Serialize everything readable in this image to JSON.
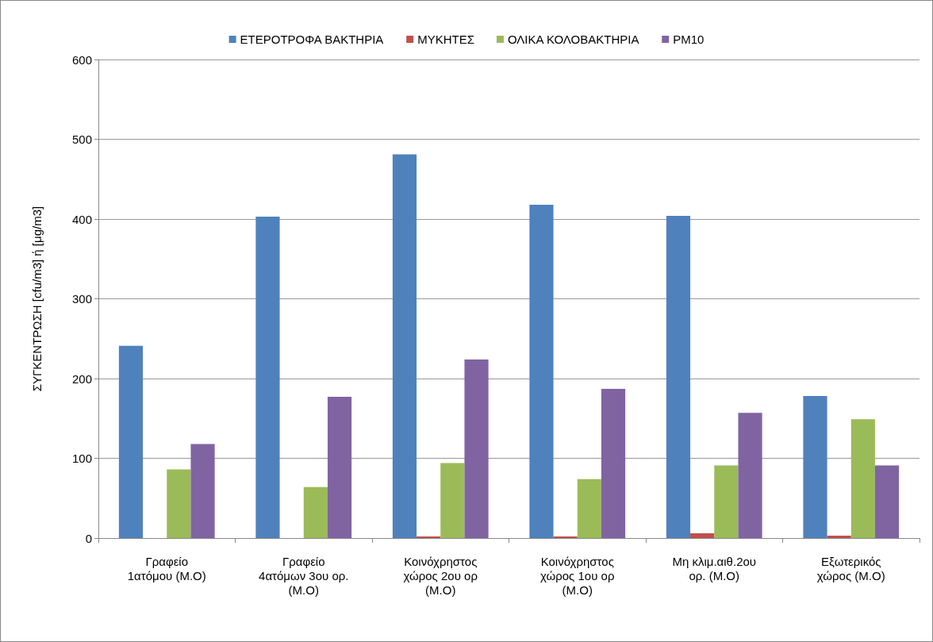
{
  "chart_data": {
    "type": "bar",
    "ylabel": "ΣΥΓΚΕΝΤΡΩΣΗ [cfu/m3] ή [μg/m3]",
    "categories": [
      "Γραφείο\n1ατόμου (Μ.Ο)",
      "Γραφείο\n4ατόμων 3ου ορ.\n(Μ.Ο)",
      "Κοινόχρηστος\nχώρος 2ου ορ\n(Μ.Ο)",
      "Κοινόχρηστος\nχώρος 1ου ορ\n(Μ.Ο)",
      "Μη κλιμ.αιθ.2ου\nορ. (Μ.Ο)",
      "Εξωτερικός\nχώρος (Μ.Ο)"
    ],
    "series": [
      {
        "name": "ΕΤΕΡΟΤΡΟΦΑ ΒΑΚΤΗΡΙΑ",
        "color": "#4f81bd",
        "values": [
          241,
          403,
          481,
          418,
          404,
          178
        ]
      },
      {
        "name": "ΜΥΚΗΤΕΣ",
        "color": "#c0504d",
        "values": [
          0,
          0,
          2,
          2,
          6,
          3
        ]
      },
      {
        "name": "ΟΛΙΚΑ ΚΟΛΟΒΑΚΤΗΡΙΑ",
        "color": "#9bbb59",
        "values": [
          86,
          64,
          94,
          74,
          91,
          149
        ]
      },
      {
        "name": "PM10",
        "color": "#8064a2",
        "values": [
          118,
          177,
          224,
          187,
          157,
          91
        ]
      }
    ],
    "ylim": [
      0,
      600
    ],
    "yticks": [
      0,
      100,
      200,
      300,
      400,
      500,
      600
    ],
    "grid": "y",
    "legend": "top"
  }
}
